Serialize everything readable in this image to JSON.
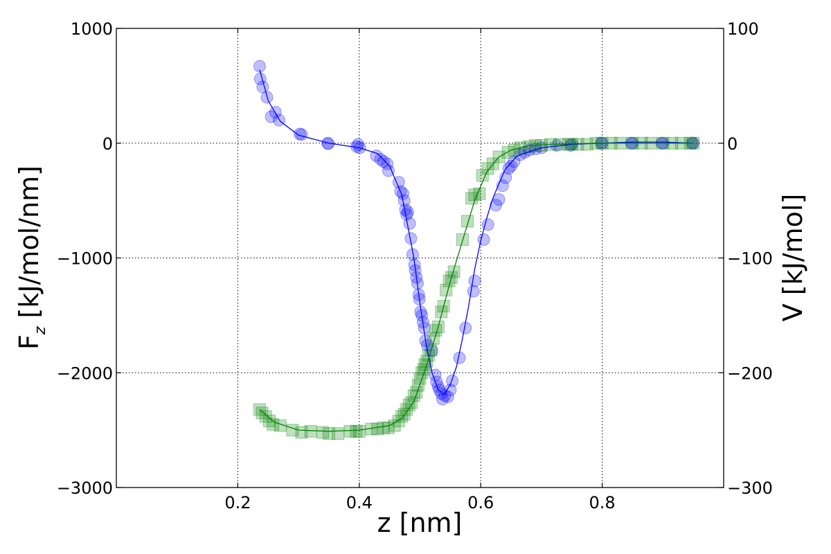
{
  "chart_data": {
    "type": "scatter",
    "xlabel": "z [nm]",
    "ylabel_left": "F_z [kJ/mol/nm]",
    "ylabel_left_main": "F",
    "ylabel_left_sub": "z",
    "ylabel_left_rest": " [kJ/mol/nm]",
    "ylabel_right": "V [kJ/mol]",
    "xlim": [
      0.0,
      1.0
    ],
    "ylim_left": [
      -3000,
      1000
    ],
    "ylim_right": [
      -300,
      100
    ],
    "grid": true,
    "x_ticks": [
      0.2,
      0.4,
      0.6,
      0.8
    ],
    "x_tick_labels": [
      "0.2",
      "0.4",
      "0.6",
      "0.8"
    ],
    "y_left_ticks": [
      1000,
      0,
      -1000,
      -2000,
      -3000
    ],
    "y_left_tick_labels": [
      "1000",
      "0",
      "−1000",
      "−2000",
      "−3000"
    ],
    "y_right_ticks": [
      100,
      0,
      -100,
      -200,
      -300
    ],
    "y_right_tick_labels": [
      "100",
      "0",
      "−100",
      "−200",
      "−300"
    ],
    "series": [
      {
        "axis": "left",
        "marker": "circle",
        "color": "#0000ff",
        "points": [
          [
            0.236,
            670
          ],
          [
            0.237,
            560
          ],
          [
            0.241,
            490
          ],
          [
            0.248,
            400
          ],
          [
            0.255,
            230
          ],
          [
            0.262,
            270
          ],
          [
            0.268,
            200
          ],
          [
            0.302,
            80
          ],
          [
            0.305,
            75
          ],
          [
            0.348,
            0
          ],
          [
            0.349,
            -5
          ],
          [
            0.396,
            -30
          ],
          [
            0.398,
            -10
          ],
          [
            0.401,
            -40
          ],
          [
            0.428,
            -110
          ],
          [
            0.435,
            -140
          ],
          [
            0.44,
            -160
          ],
          [
            0.446,
            -180
          ],
          [
            0.448,
            -240
          ],
          [
            0.465,
            -340
          ],
          [
            0.468,
            -420
          ],
          [
            0.472,
            -440
          ],
          [
            0.474,
            -500
          ],
          [
            0.476,
            -580
          ],
          [
            0.478,
            -620
          ],
          [
            0.48,
            -600
          ],
          [
            0.483,
            -700
          ],
          [
            0.485,
            -830
          ],
          [
            0.488,
            -970
          ],
          [
            0.491,
            -1060
          ],
          [
            0.492,
            -1110
          ],
          [
            0.494,
            -1170
          ],
          [
            0.496,
            -1220
          ],
          [
            0.498,
            -1320
          ],
          [
            0.499,
            -1360
          ],
          [
            0.501,
            -1470
          ],
          [
            0.503,
            -1500
          ],
          [
            0.505,
            -1560
          ],
          [
            0.507,
            -1610
          ],
          [
            0.509,
            -1720
          ],
          [
            0.512,
            -1760
          ],
          [
            0.52,
            -1810
          ],
          [
            0.525,
            -2020
          ],
          [
            0.527,
            -2080
          ],
          [
            0.53,
            -2120
          ],
          [
            0.532,
            -2150
          ],
          [
            0.535,
            -2180
          ],
          [
            0.537,
            -2230
          ],
          [
            0.541,
            -2200
          ],
          [
            0.546,
            -2210
          ],
          [
            0.55,
            -2150
          ],
          [
            0.553,
            -2070
          ],
          [
            0.565,
            -1870
          ],
          [
            0.575,
            -1610
          ],
          [
            0.588,
            -1290
          ],
          [
            0.59,
            -1200
          ],
          [
            0.605,
            -840
          ],
          [
            0.612,
            -710
          ],
          [
            0.625,
            -540
          ],
          [
            0.63,
            -490
          ],
          [
            0.636,
            -370
          ],
          [
            0.641,
            -300
          ],
          [
            0.646,
            -220
          ],
          [
            0.65,
            -200
          ],
          [
            0.655,
            -160
          ],
          [
            0.665,
            -100
          ],
          [
            0.672,
            -80
          ],
          [
            0.68,
            -60
          ],
          [
            0.69,
            -50
          ],
          [
            0.7,
            -40
          ],
          [
            0.725,
            -20
          ],
          [
            0.748,
            -20
          ],
          [
            0.75,
            -10
          ],
          [
            0.798,
            0
          ],
          [
            0.8,
            0
          ],
          [
            0.848,
            0
          ],
          [
            0.85,
            0
          ],
          [
            0.898,
            0
          ],
          [
            0.9,
            0
          ],
          [
            0.948,
            0
          ],
          [
            0.95,
            0
          ]
        ],
        "curve": [
          [
            0.236,
            640
          ],
          [
            0.25,
            370
          ],
          [
            0.27,
            190
          ],
          [
            0.3,
            70
          ],
          [
            0.35,
            0
          ],
          [
            0.4,
            -40
          ],
          [
            0.43,
            -90
          ],
          [
            0.45,
            -200
          ],
          [
            0.47,
            -450
          ],
          [
            0.49,
            -1000
          ],
          [
            0.5,
            -1400
          ],
          [
            0.51,
            -1750
          ],
          [
            0.52,
            -2000
          ],
          [
            0.53,
            -2150
          ],
          [
            0.54,
            -2190
          ],
          [
            0.55,
            -2100
          ],
          [
            0.56,
            -1950
          ],
          [
            0.57,
            -1700
          ],
          [
            0.58,
            -1420
          ],
          [
            0.59,
            -1100
          ],
          [
            0.6,
            -850
          ],
          [
            0.61,
            -650
          ],
          [
            0.62,
            -480
          ],
          [
            0.64,
            -230
          ],
          [
            0.66,
            -110
          ],
          [
            0.7,
            -40
          ],
          [
            0.75,
            -10
          ],
          [
            0.8,
            0
          ],
          [
            0.85,
            10
          ],
          [
            0.9,
            10
          ],
          [
            0.95,
            0
          ]
        ]
      },
      {
        "axis": "right",
        "marker": "square",
        "color": "#008000",
        "points": [
          [
            0.236,
            -232
          ],
          [
            0.24,
            -235
          ],
          [
            0.246,
            -238
          ],
          [
            0.252,
            -242
          ],
          [
            0.258,
            -245
          ],
          [
            0.27,
            -246
          ],
          [
            0.29,
            -250
          ],
          [
            0.305,
            -252
          ],
          [
            0.32,
            -251
          ],
          [
            0.34,
            -252
          ],
          [
            0.35,
            -253
          ],
          [
            0.365,
            -253
          ],
          [
            0.385,
            -251
          ],
          [
            0.395,
            -251
          ],
          [
            0.4,
            -251
          ],
          [
            0.42,
            -249
          ],
          [
            0.43,
            -249
          ],
          [
            0.44,
            -248
          ],
          [
            0.448,
            -248
          ],
          [
            0.458,
            -246
          ],
          [
            0.465,
            -242
          ],
          [
            0.47,
            -238
          ],
          [
            0.474,
            -236
          ],
          [
            0.478,
            -232
          ],
          [
            0.482,
            -228
          ],
          [
            0.486,
            -226
          ],
          [
            0.49,
            -220
          ],
          [
            0.494,
            -217
          ],
          [
            0.497,
            -211
          ],
          [
            0.5,
            -205
          ],
          [
            0.503,
            -200
          ],
          [
            0.506,
            -197
          ],
          [
            0.508,
            -193
          ],
          [
            0.511,
            -190
          ],
          [
            0.514,
            -185
          ],
          [
            0.518,
            -180
          ],
          [
            0.522,
            -170
          ],
          [
            0.526,
            -163
          ],
          [
            0.53,
            -160
          ],
          [
            0.535,
            -147
          ],
          [
            0.539,
            -142
          ],
          [
            0.543,
            -128
          ],
          [
            0.548,
            -120
          ],
          [
            0.552,
            -117
          ],
          [
            0.556,
            -112
          ],
          [
            0.57,
            -84
          ],
          [
            0.578,
            -68
          ],
          [
            0.585,
            -48
          ],
          [
            0.59,
            -45
          ],
          [
            0.598,
            -44
          ],
          [
            0.603,
            -28
          ],
          [
            0.612,
            -22
          ],
          [
            0.62,
            -18
          ],
          [
            0.63,
            -12
          ],
          [
            0.645,
            -8
          ],
          [
            0.655,
            -6
          ],
          [
            0.665,
            -4
          ],
          [
            0.68,
            -3
          ],
          [
            0.69,
            -2
          ],
          [
            0.7,
            -2
          ],
          [
            0.715,
            -1
          ],
          [
            0.73,
            -1
          ],
          [
            0.745,
            -1
          ],
          [
            0.75,
            -1
          ],
          [
            0.76,
            -1
          ],
          [
            0.775,
            -1
          ],
          [
            0.79,
            0
          ],
          [
            0.8,
            0
          ],
          [
            0.815,
            0
          ],
          [
            0.83,
            0
          ],
          [
            0.85,
            0
          ],
          [
            0.865,
            0
          ],
          [
            0.88,
            0
          ],
          [
            0.9,
            0
          ],
          [
            0.915,
            0
          ],
          [
            0.93,
            0
          ],
          [
            0.945,
            0
          ],
          [
            0.95,
            0
          ]
        ],
        "curve": [
          [
            0.236,
            -232
          ],
          [
            0.26,
            -243
          ],
          [
            0.3,
            -250
          ],
          [
            0.35,
            -251
          ],
          [
            0.4,
            -250
          ],
          [
            0.45,
            -246
          ],
          [
            0.47,
            -240
          ],
          [
            0.49,
            -225
          ],
          [
            0.51,
            -195
          ],
          [
            0.53,
            -160
          ],
          [
            0.55,
            -120
          ],
          [
            0.57,
            -85
          ],
          [
            0.59,
            -50
          ],
          [
            0.61,
            -25
          ],
          [
            0.63,
            -12
          ],
          [
            0.65,
            -6
          ],
          [
            0.68,
            -2
          ],
          [
            0.72,
            -1
          ],
          [
            0.8,
            0
          ],
          [
            0.9,
            0
          ],
          [
            0.95,
            0
          ]
        ]
      }
    ]
  }
}
